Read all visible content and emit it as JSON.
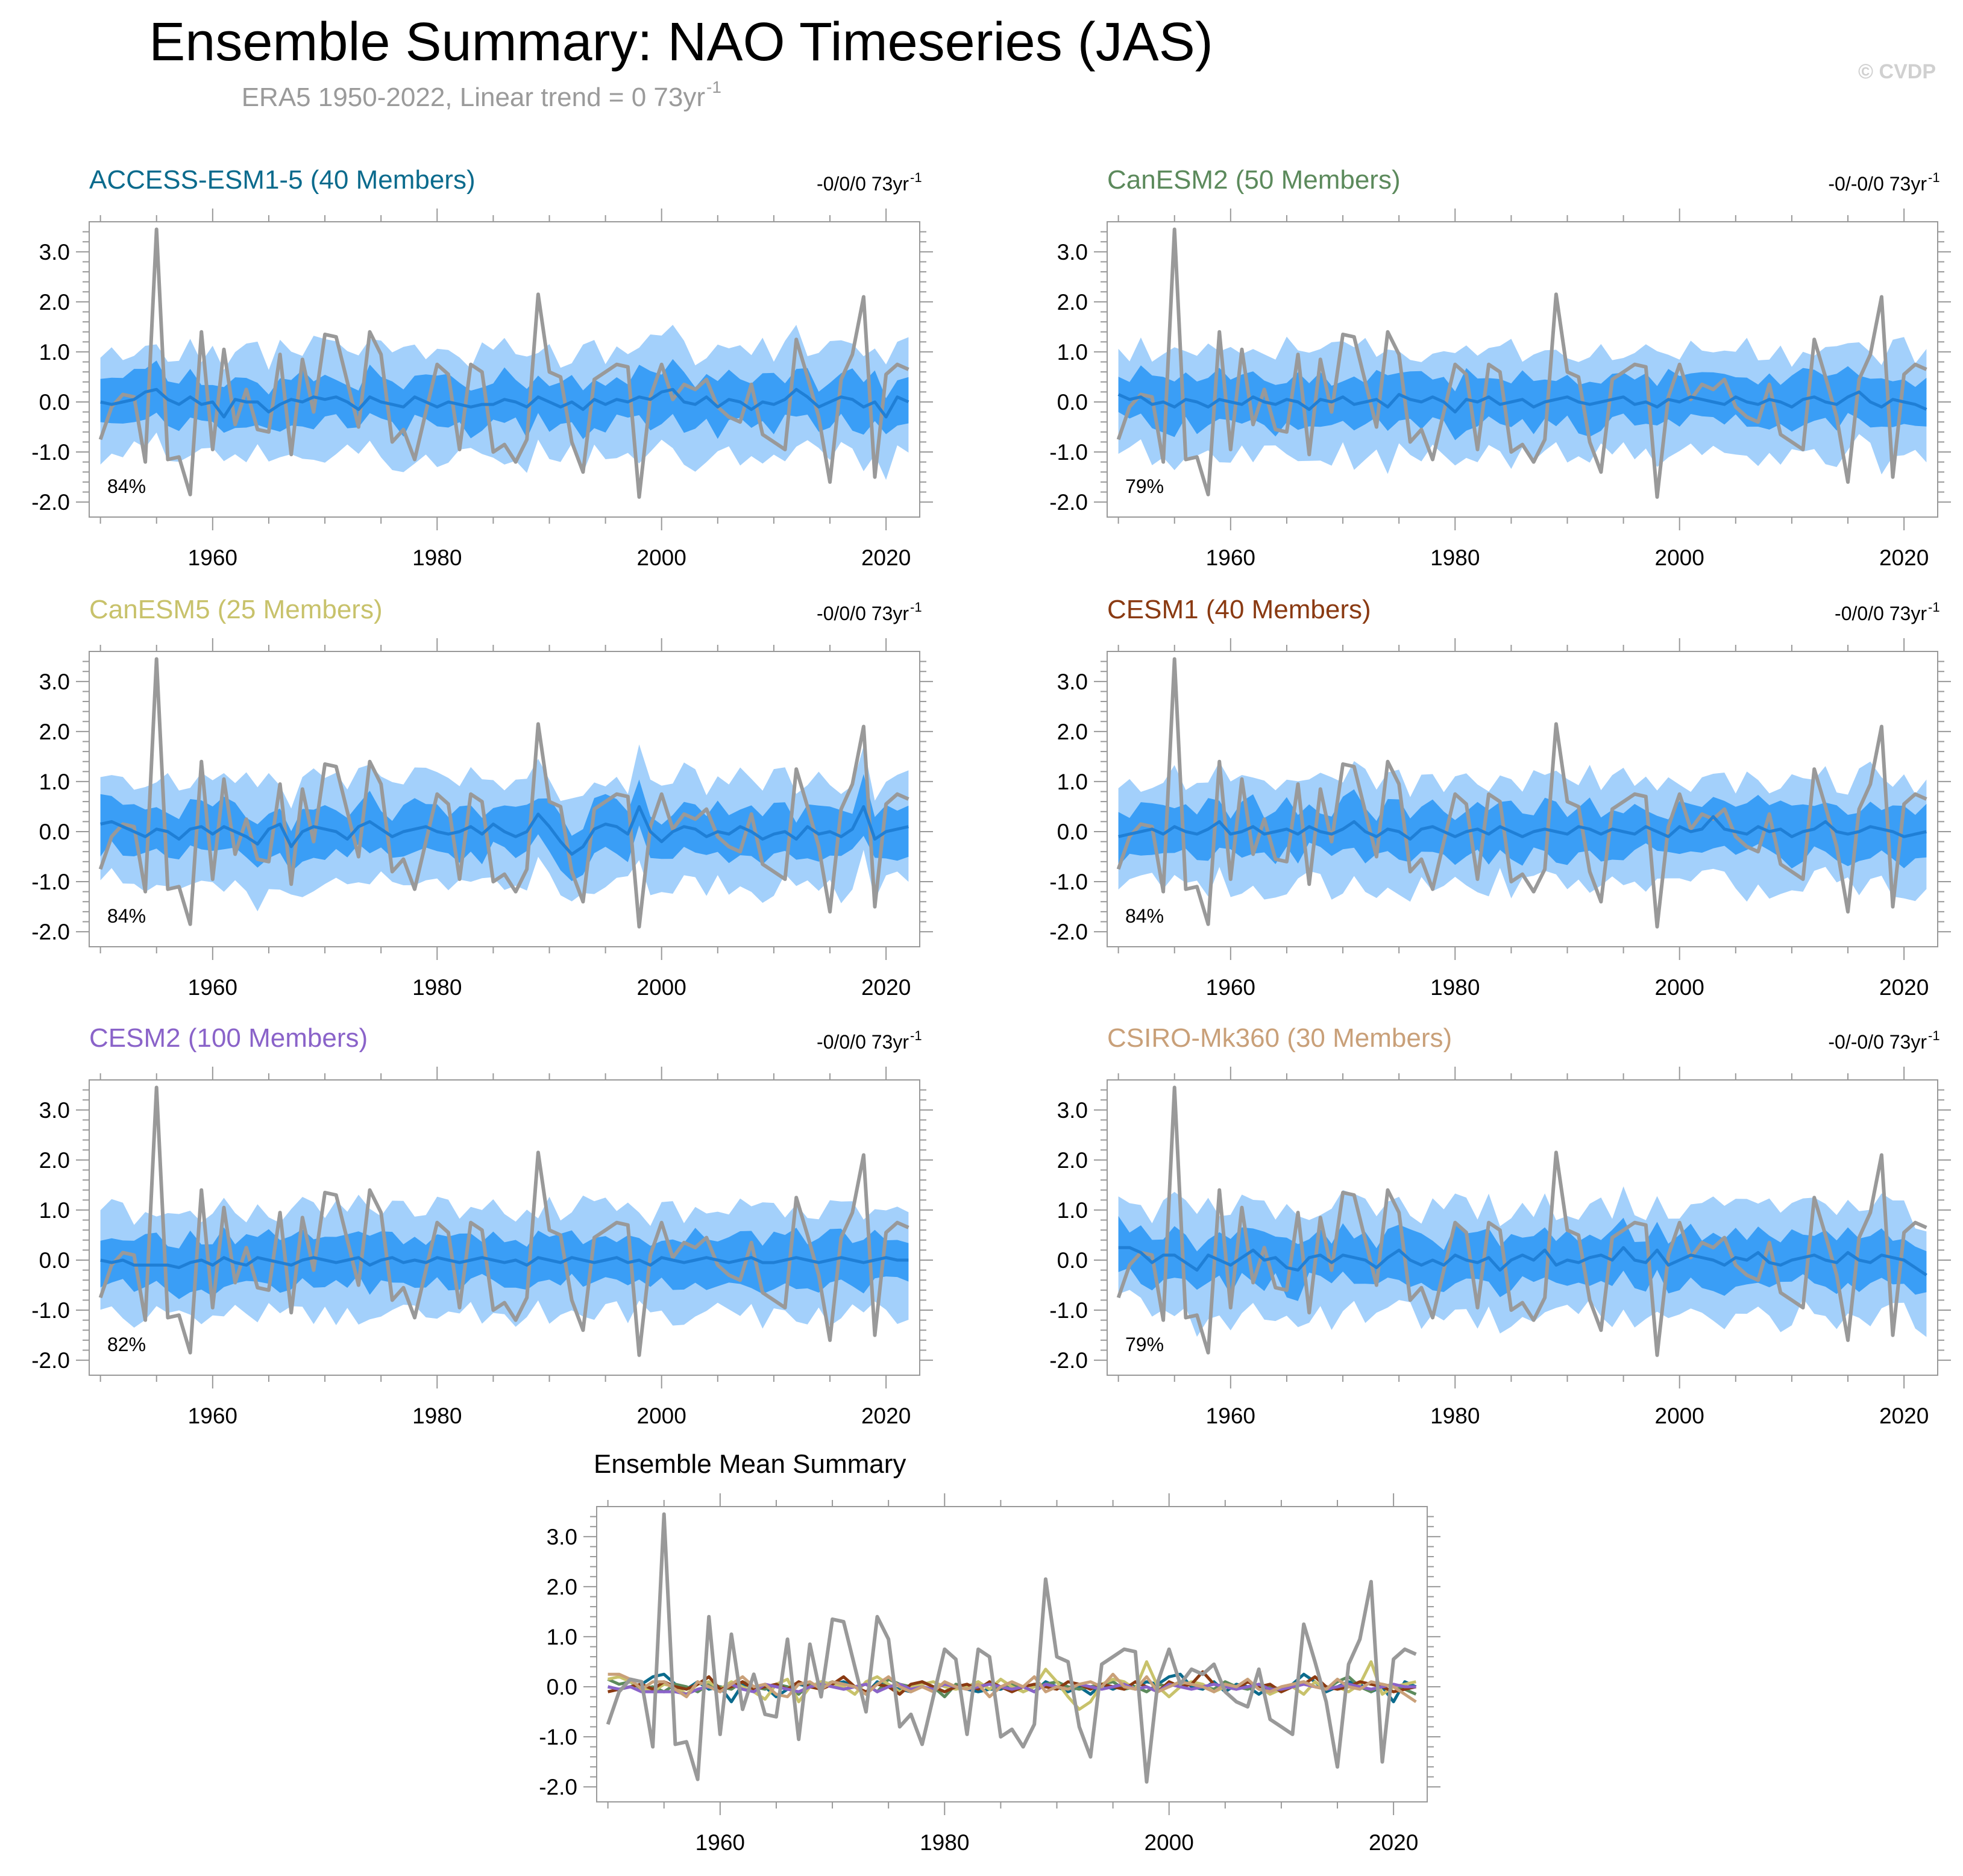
{
  "figure": {
    "title": "Ensemble Summary: NAO Timeseries (JAS)",
    "subtitle": "ERA5 1950-2022, Linear trend = 0 73yr",
    "subtitle_sup": "-1",
    "copyright": "© CVDP",
    "summary_title": "Ensemble Mean Summary"
  },
  "colors": {
    "band_outer": "#a3d0fb",
    "band_inner": "#3a9ef6",
    "ensemble_mean": "#1f7fd6",
    "observations": "#999999",
    "frame": "#999999"
  },
  "chart_data": {
    "type": "line",
    "x_range": [
      1950,
      2022
    ],
    "xlim": [
      1949,
      2023
    ],
    "x_ticks": [
      1960,
      1980,
      2000,
      2020
    ],
    "x_tick_labels": [
      "1960",
      "1980",
      "2000",
      "2020"
    ],
    "ylim": [
      -2.3,
      3.6
    ],
    "y_ticks": [
      3.0,
      2.0,
      1.0,
      0.0,
      -1.0,
      -2.0
    ],
    "y_tick_labels": [
      "3.0",
      "2.0",
      "1.0",
      "0.0",
      "-1.0",
      "-2.0"
    ],
    "observations": {
      "name": "ERA5",
      "color": "#999999",
      "values": [
        -0.75,
        -0.1,
        0.15,
        0.1,
        -1.2,
        3.45,
        -1.15,
        -1.1,
        -1.85,
        1.4,
        -0.95,
        1.05,
        -0.45,
        0.25,
        -0.55,
        -0.6,
        0.95,
        -1.05,
        0.85,
        -0.2,
        1.35,
        1.3,
        0.4,
        -0.5,
        1.4,
        0.95,
        -0.8,
        -0.55,
        -1.15,
        -0.2,
        0.75,
        0.55,
        -0.95,
        0.75,
        0.6,
        -1.0,
        -0.85,
        -1.2,
        -0.75,
        2.15,
        0.6,
        0.5,
        -0.8,
        -1.4,
        0.45,
        0.6,
        0.75,
        0.7,
        -1.9,
        0.1,
        0.75,
        0.05,
        0.35,
        0.25,
        0.45,
        -0.1,
        -0.3,
        -0.4,
        0.35,
        -0.65,
        -0.8,
        -0.95,
        1.25,
        0.5,
        -0.3,
        -1.6,
        0.45,
        0.95,
        2.1,
        -1.5,
        0.55,
        0.75,
        0.65
      ]
    },
    "panels": [
      {
        "name": "ACCESS-ESM1-5 (40 Members)",
        "color": "#0b6b8d",
        "trend_text": "-0/0/0 73yr",
        "trend_sup": "-1",
        "percent": "84%",
        "mean_values": [
          0.0,
          -0.05,
          0.0,
          0.05,
          0.2,
          0.25,
          0.05,
          -0.05,
          0.1,
          -0.05,
          0.0,
          -0.3,
          0.05,
          0.0,
          0.0,
          -0.2,
          -0.05,
          0.05,
          0.0,
          0.1,
          0.05,
          0.1,
          0.0,
          -0.15,
          0.1,
          0.0,
          -0.05,
          -0.1,
          0.1,
          0.0,
          -0.1,
          0.0,
          -0.05,
          -0.1,
          -0.05,
          -0.05,
          0.05,
          0.0,
          -0.1,
          0.1,
          0.0,
          -0.1,
          0.0,
          -0.15,
          0.05,
          -0.05,
          0.05,
          0.0,
          0.1,
          0.05,
          0.2,
          0.25,
          0.0,
          -0.05,
          0.1,
          -0.1,
          0.05,
          0.0,
          -0.15,
          0.0,
          -0.05,
          0.05,
          0.25,
          0.1,
          -0.1,
          0.0,
          0.1,
          0.05,
          -0.1,
          0.0,
          -0.3,
          0.1,
          0.0
        ]
      },
      {
        "name": "CanESM2 (50 Members)",
        "color": "#5c8a5c",
        "trend_text": "-0/-0/0 73yr",
        "trend_sup": "-1",
        "percent": "79%",
        "mean_values": [
          0.15,
          0.05,
          0.1,
          -0.05,
          0.0,
          -0.1,
          0.05,
          0.0,
          -0.1,
          0.05,
          0.0,
          -0.05,
          0.1,
          0.0,
          -0.05,
          0.05,
          0.0,
          -0.15,
          0.05,
          0.0,
          0.1,
          -0.05,
          0.0,
          0.05,
          -0.1,
          0.15,
          0.05,
          0.0,
          0.1,
          0.0,
          -0.2,
          0.05,
          0.0,
          0.1,
          -0.05,
          0.0,
          0.05,
          -0.1,
          0.0,
          0.05,
          0.1,
          0.0,
          -0.05,
          0.0,
          0.05,
          0.1,
          -0.05,
          0.0,
          -0.1,
          0.05,
          0.0,
          0.1,
          0.05,
          0.0,
          -0.05,
          0.1,
          0.0,
          -0.05,
          0.05,
          0.0,
          -0.1,
          0.05,
          0.1,
          0.0,
          -0.05,
          0.1,
          0.2,
          0.0,
          -0.1,
          0.05,
          0.0,
          -0.05,
          -0.15
        ]
      },
      {
        "name": "CanESM5 (25 Members)",
        "color": "#c8c26b",
        "trend_text": "-0/0/0 73yr",
        "trend_sup": "-1",
        "percent": "84%",
        "mean_values": [
          0.15,
          0.2,
          0.1,
          0.0,
          -0.1,
          0.05,
          0.0,
          -0.15,
          0.05,
          0.1,
          -0.05,
          0.1,
          0.0,
          -0.1,
          -0.25,
          0.05,
          0.15,
          -0.3,
          0.0,
          0.1,
          0.05,
          0.0,
          -0.15,
          0.1,
          0.2,
          0.05,
          -0.1,
          0.0,
          0.05,
          0.1,
          0.0,
          -0.05,
          0.0,
          0.1,
          -0.05,
          0.15,
          0.0,
          -0.1,
          0.0,
          0.35,
          0.1,
          -0.2,
          -0.45,
          -0.3,
          0.05,
          0.15,
          0.1,
          -0.05,
          0.5,
          0.0,
          -0.2,
          0.0,
          0.1,
          0.05,
          -0.1,
          0.0,
          -0.05,
          0.1,
          0.0,
          -0.15,
          -0.05,
          0.0,
          -0.15,
          0.1,
          -0.05,
          0.0,
          -0.1,
          0.05,
          0.5,
          -0.15,
          0.0,
          0.05,
          0.1
        ]
      },
      {
        "name": "CESM1 (40 Members)",
        "color": "#8a3a12",
        "trend_text": "-0/0/0 73yr",
        "trend_sup": "-1",
        "percent": "84%",
        "mean_values": [
          -0.1,
          -0.05,
          0.0,
          0.05,
          -0.05,
          0.1,
          0.0,
          -0.05,
          0.05,
          0.2,
          -0.05,
          0.0,
          0.1,
          -0.05,
          0.0,
          0.05,
          -0.05,
          0.1,
          0.0,
          -0.05,
          0.05,
          0.2,
          0.0,
          -0.1,
          0.05,
          0.0,
          -0.15,
          0.05,
          0.1,
          0.0,
          -0.1,
          0.0,
          0.05,
          -0.05,
          0.1,
          0.0,
          -0.1,
          0.0,
          0.05,
          0.0,
          -0.05,
          0.1,
          0.05,
          -0.05,
          0.05,
          0.0,
          -0.05,
          0.1,
          0.0,
          -0.1,
          0.1,
          0.0,
          0.05,
          0.3,
          0.05,
          0.0,
          -0.05,
          0.1,
          0.0,
          0.05,
          -0.1,
          0.0,
          0.05,
          0.2,
          0.0,
          -0.05,
          0.0,
          0.1,
          0.05,
          0.0,
          -0.1,
          -0.05,
          0.0
        ]
      },
      {
        "name": "CESM2 (100 Members)",
        "color": "#8a63c9",
        "trend_text": "-0/0/0 73yr",
        "trend_sup": "-1",
        "percent": "82%",
        "mean_values": [
          0.0,
          -0.05,
          0.0,
          -0.1,
          -0.1,
          -0.1,
          -0.1,
          -0.15,
          -0.05,
          0.0,
          -0.1,
          0.05,
          -0.05,
          -0.1,
          0.05,
          0.0,
          -0.05,
          -0.1,
          0.0,
          0.05,
          0.0,
          -0.05,
          0.0,
          0.05,
          -0.1,
          0.0,
          0.05,
          -0.05,
          0.0,
          -0.05,
          0.05,
          0.0,
          -0.05,
          0.0,
          0.05,
          0.0,
          -0.05,
          0.0,
          -0.1,
          0.05,
          0.0,
          -0.05,
          0.05,
          0.0,
          -0.05,
          0.0,
          0.05,
          -0.05,
          0.0,
          -0.1,
          0.05,
          0.0,
          -0.05,
          0.0,
          0.05,
          0.0,
          -0.05,
          0.0,
          0.05,
          -0.05,
          -0.05,
          0.0,
          0.05,
          0.0,
          -0.05,
          0.0,
          0.05,
          0.0,
          -0.05,
          0.0,
          0.05,
          0.0,
          0.0
        ]
      },
      {
        "name": "CSIRO-Mk360 (30 Members)",
        "color": "#c9a079",
        "trend_text": "-0/-0/0 73yr",
        "trend_sup": "-1",
        "percent": "79%",
        "mean_values": [
          0.25,
          0.25,
          0.15,
          -0.05,
          0.1,
          0.1,
          -0.05,
          -0.2,
          0.1,
          0.0,
          -0.1,
          0.05,
          0.2,
          0.0,
          0.05,
          -0.15,
          -0.2,
          0.05,
          0.1,
          -0.05,
          0.1,
          0.05,
          0.0,
          -0.15,
          0.05,
          0.2,
          0.0,
          -0.1,
          0.0,
          -0.1,
          0.1,
          0.0,
          -0.05,
          0.05,
          -0.2,
          0.0,
          0.1,
          0.0,
          0.2,
          -0.1,
          0.0,
          -0.05,
          0.05,
          0.1,
          0.0,
          0.25,
          0.0,
          -0.05,
          0.2,
          -0.1,
          0.0,
          0.1,
          0.05,
          0.0,
          -0.1,
          0.05,
          0.0,
          0.15,
          -0.05,
          -0.1,
          0.0,
          0.05,
          0.1,
          0.0,
          -0.05,
          0.15,
          0.0,
          -0.05,
          0.1,
          0.05,
          0.0,
          -0.15,
          -0.3
        ]
      }
    ],
    "summary": {
      "title": "Ensemble Mean Summary",
      "series_colors": [
        "#0b6b8d",
        "#5c8a5c",
        "#c8c26b",
        "#8a3a12",
        "#8a63c9",
        "#c9a079"
      ]
    }
  }
}
